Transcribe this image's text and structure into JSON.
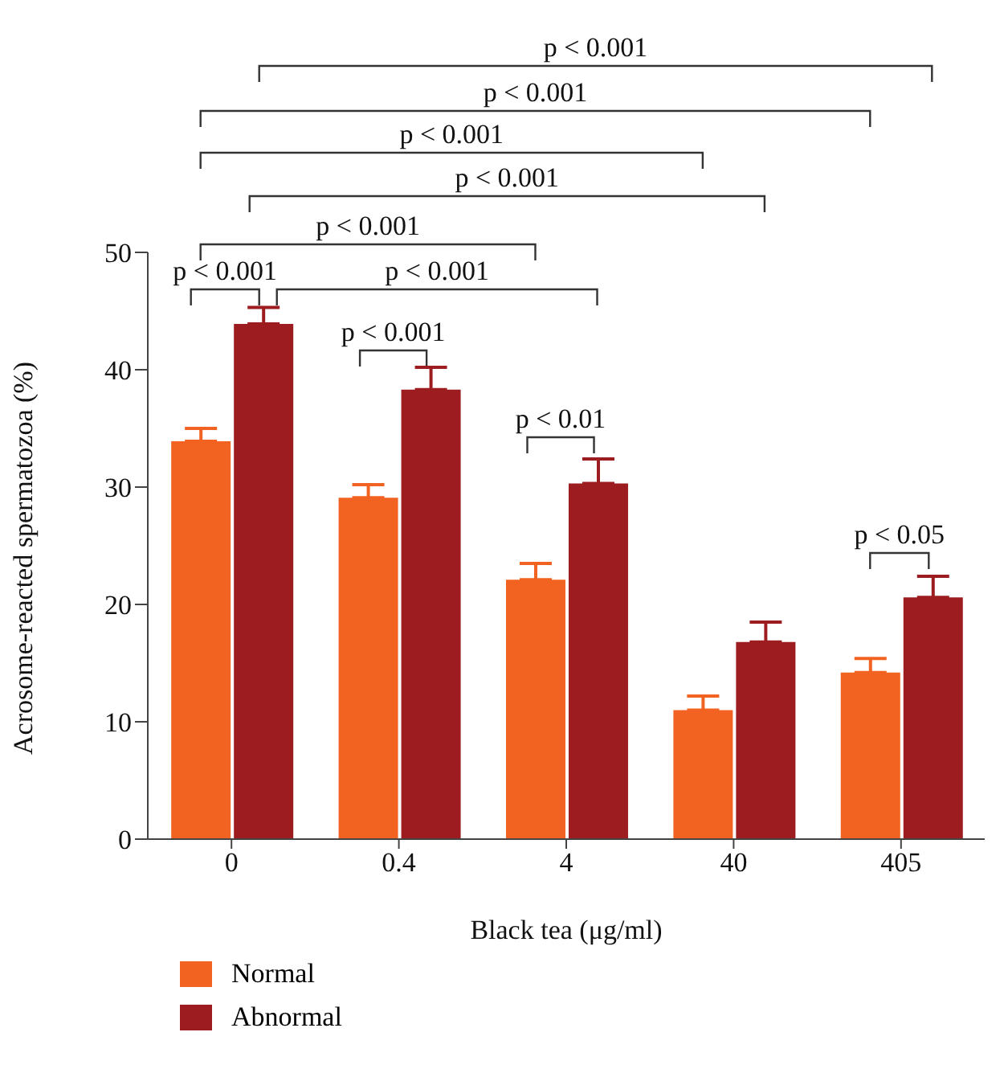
{
  "chart_data": {
    "type": "bar",
    "xlabel": "Black tea (μg/ml)",
    "ylabel": "Acrosome-reacted spermatozoa (%)",
    "categories": [
      "0",
      "0.4",
      "4",
      "40",
      "405"
    ],
    "series": [
      {
        "name": "Normal",
        "color": "#f26322",
        "values": [
          33.9,
          29.1,
          22.1,
          11.0,
          14.2
        ],
        "errors": [
          [
            33.9,
            35.0
          ],
          [
            29.1,
            30.2
          ],
          [
            22.1,
            23.5
          ],
          [
            11.0,
            12.2
          ],
          [
            14.2,
            15.4
          ]
        ]
      },
      {
        "name": "Abnormal",
        "color": "#9c1c20",
        "values": [
          43.9,
          38.3,
          30.3,
          16.8,
          20.6
        ],
        "errors": [
          [
            43.9,
            45.3
          ],
          [
            38.3,
            40.2
          ],
          [
            30.3,
            32.4
          ],
          [
            16.8,
            18.5
          ],
          [
            20.6,
            22.4
          ]
        ]
      }
    ],
    "ylim": [
      0,
      50
    ],
    "yticks": [
      0,
      10,
      20,
      30,
      40,
      50
    ],
    "grid": false,
    "legend": "bottom left",
    "annotations": [
      "p < 0.001",
      "p < 0.001",
      "p < 0.001",
      "p < 0.001",
      "p < 0.001",
      "p < 0.001",
      "p < 0.001",
      "p < 0.001",
      "p < 0.01",
      "p < 0.05"
    ]
  }
}
